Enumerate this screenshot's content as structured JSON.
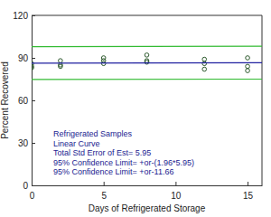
{
  "chart_data": {
    "type": "scatter",
    "x_label": "Days of Refrigerated Storage",
    "y_label": "Percent Recovered",
    "xlim": [
      0,
      16
    ],
    "ylim": [
      0,
      120
    ],
    "xticks": [
      0,
      5,
      10,
      15
    ],
    "yticks": [
      0,
      30,
      60,
      90,
      120
    ],
    "grid": false,
    "annotations": [
      "Refrigerated Samples",
      "Linear Curve",
      "Total Std Error of Est= 5.95",
      "95% Confidence Limit= +or-(1.96*5.95)",
      "95% Confidence Limit= +or-11.66"
    ],
    "series": [
      {
        "type": "scatter",
        "marker": "circle",
        "color": "#2e5a2e",
        "x": [
          0,
          0,
          0,
          2,
          2,
          2,
          5,
          5,
          5,
          8,
          8,
          8,
          12,
          12,
          12,
          15,
          15,
          15
        ],
        "values": [
          86,
          84,
          83,
          88,
          85,
          84,
          90,
          88,
          86,
          92,
          88,
          87,
          89,
          86,
          82,
          90,
          84,
          81
        ]
      },
      {
        "type": "line",
        "line_style": "solid",
        "color": "#2020a0",
        "x": [
          0,
          16
        ],
        "values": [
          86.3,
          86.6
        ]
      },
      {
        "type": "line",
        "line_style": "solid",
        "color": "#33bb33",
        "x": [
          0,
          16
        ],
        "values": [
          97.9,
          98.2
        ]
      },
      {
        "type": "line",
        "line_style": "solid",
        "color": "#33bb33",
        "x": [
          0,
          16
        ],
        "values": [
          74.7,
          75.0
        ]
      }
    ]
  }
}
